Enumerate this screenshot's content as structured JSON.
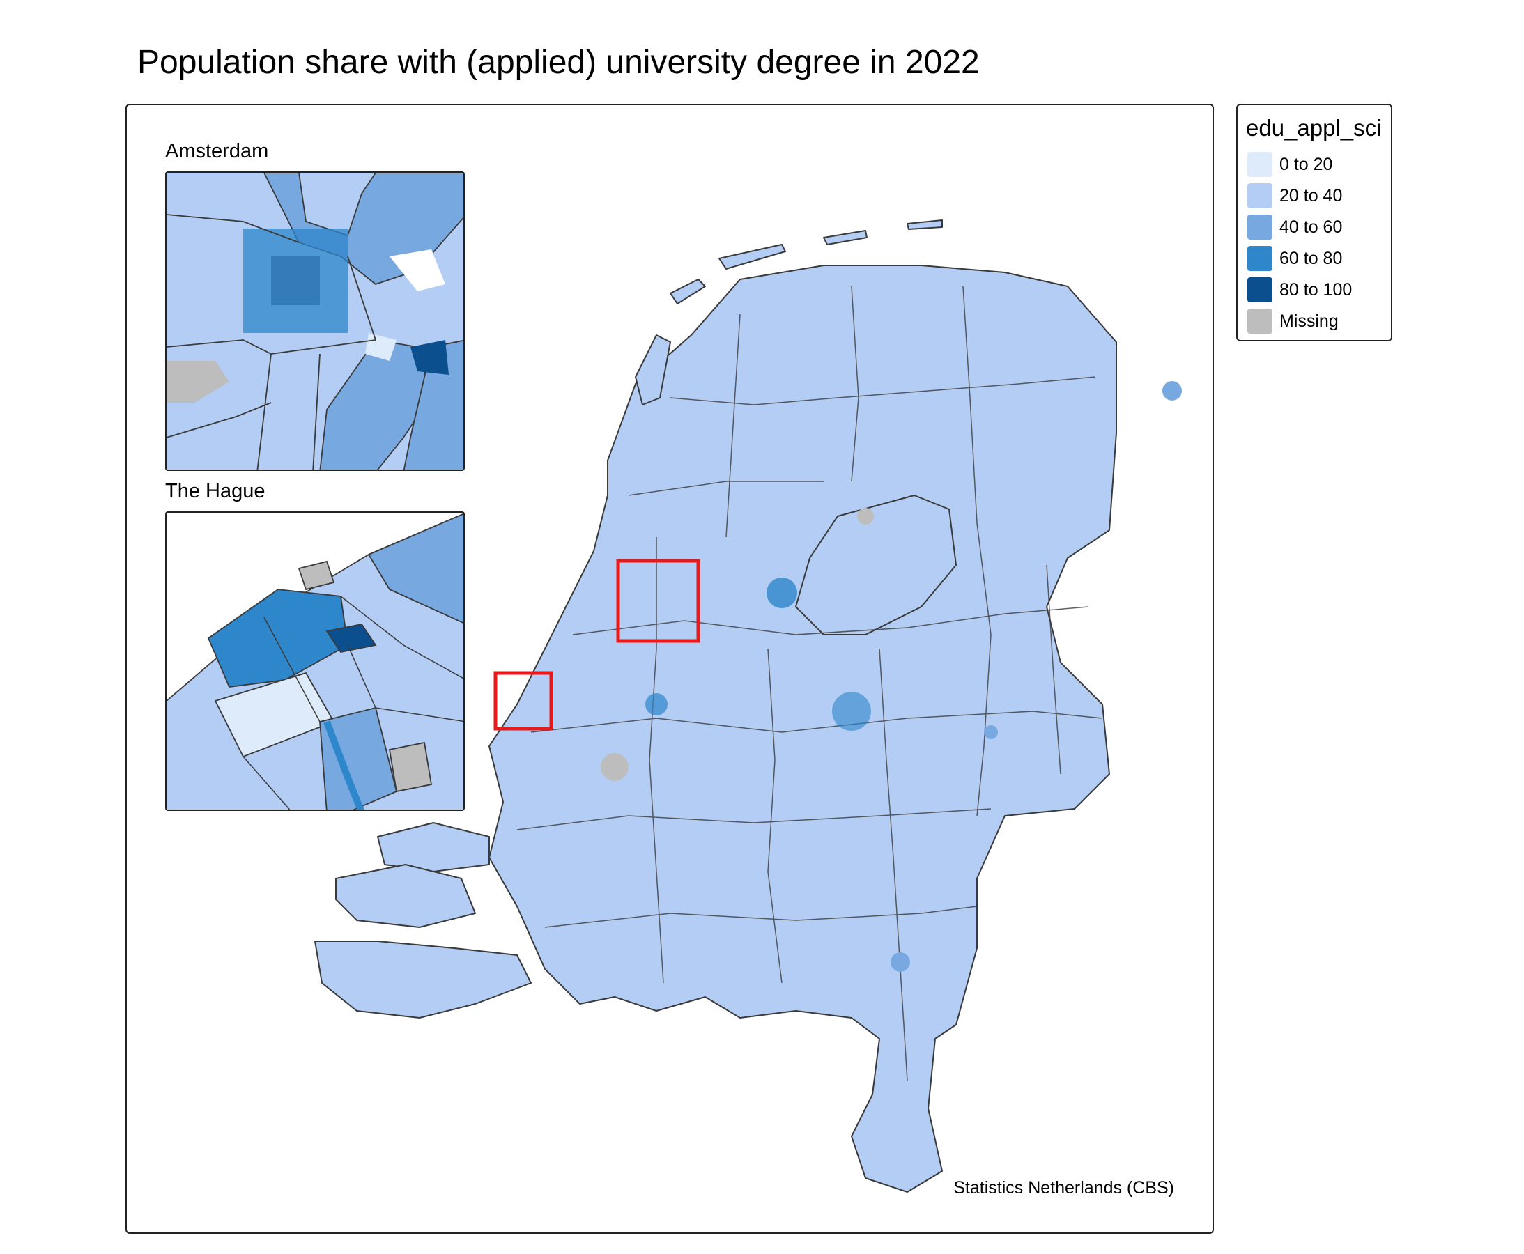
{
  "title": "Population share with (applied) university degree in 2022",
  "credit": "Statistics Netherlands (CBS)",
  "insets": [
    {
      "title": "Amsterdam"
    },
    {
      "title": "The Hague"
    }
  ],
  "legend": {
    "title": "edu_appl_sci",
    "items": [
      {
        "label": "0 to 20",
        "color": "#deebfb"
      },
      {
        "label": "20 to 40",
        "color": "#b3cdf5"
      },
      {
        "label": "40 to 60",
        "color": "#78a8e0"
      },
      {
        "label": "60 to 80",
        "color": "#2e86cb"
      },
      {
        "label": "80 to 100",
        "color": "#0b4f8f"
      },
      {
        "label": "Missing",
        "color": "#bdbdbd"
      }
    ]
  },
  "colors": {
    "border": "#3a3a3a",
    "highlight_box": "#e8191b"
  }
}
